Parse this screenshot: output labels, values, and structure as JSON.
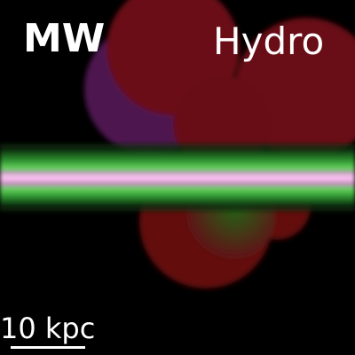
{
  "labels": {
    "galaxy": "MW",
    "simulation": "Hydro"
  },
  "scale_bar": {
    "text": "10 kpc"
  },
  "colors": {
    "background": "#000000",
    "gas_red": "#6b0f14",
    "gas_purple": "#5a1a5c",
    "disk_green": "#3cb83a",
    "disk_core": "#e8a0d8",
    "text": "#ffffff"
  }
}
